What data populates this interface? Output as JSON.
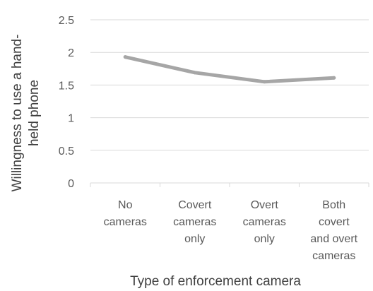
{
  "chart_data": {
    "type": "line",
    "title": "",
    "xlabel": "Type of enforcement camera",
    "ylabel_lines": [
      "Willingness to use a hand-",
      "held phone"
    ],
    "categories": [
      [
        "No",
        "cameras"
      ],
      [
        "Covert",
        "cameras",
        "only"
      ],
      [
        "Overt",
        "cameras",
        "only"
      ],
      [
        "Both",
        "covert",
        "and overt",
        "cameras"
      ]
    ],
    "series": [
      {
        "values": [
          1.93,
          1.69,
          1.55,
          1.61
        ]
      }
    ],
    "ylim": [
      0,
      2.5
    ],
    "yticks": [
      "0",
      "0.5",
      "1",
      "1.5",
      "2",
      "2.5"
    ],
    "grid": true,
    "legend": "none",
    "colors": {
      "line": "#a6a6a6",
      "grid": "#d9d9d9",
      "text": "#595959"
    }
  }
}
